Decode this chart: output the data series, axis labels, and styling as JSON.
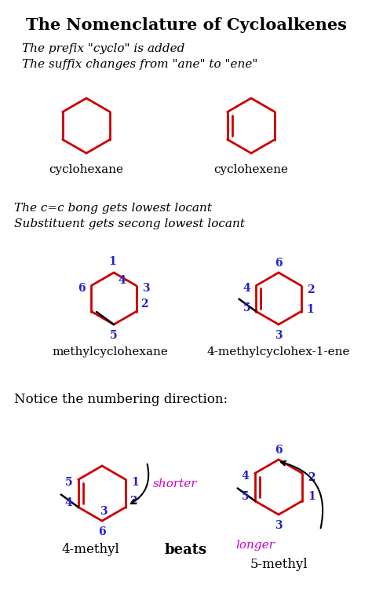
{
  "title": "The Nomenclature of Cycloalkenes",
  "title_fontsize": 16,
  "bg_color": "#ffffff",
  "red": "#cc0000",
  "blue": "#2222cc",
  "black": "#000000",
  "magenta": "#cc00cc",
  "line1": "The prefix \"cyclo\" is added",
  "line2": "The suffix changes from \"ane\" to \"ene\"",
  "line3": "The c=c bong gets lowest locant",
  "line4": "Substituent gets secong lowest locant",
  "line5": "Notice the numbering direction:",
  "label1": "cyclohexane",
  "label2": "cyclohexene",
  "label3": "methylcyclohexane",
  "label4": "4-methylcyclohex-1-ene",
  "label5": "4-methyl",
  "label6": "beats",
  "label7": "5-methyl",
  "label8": "shorter",
  "label9": "longer"
}
